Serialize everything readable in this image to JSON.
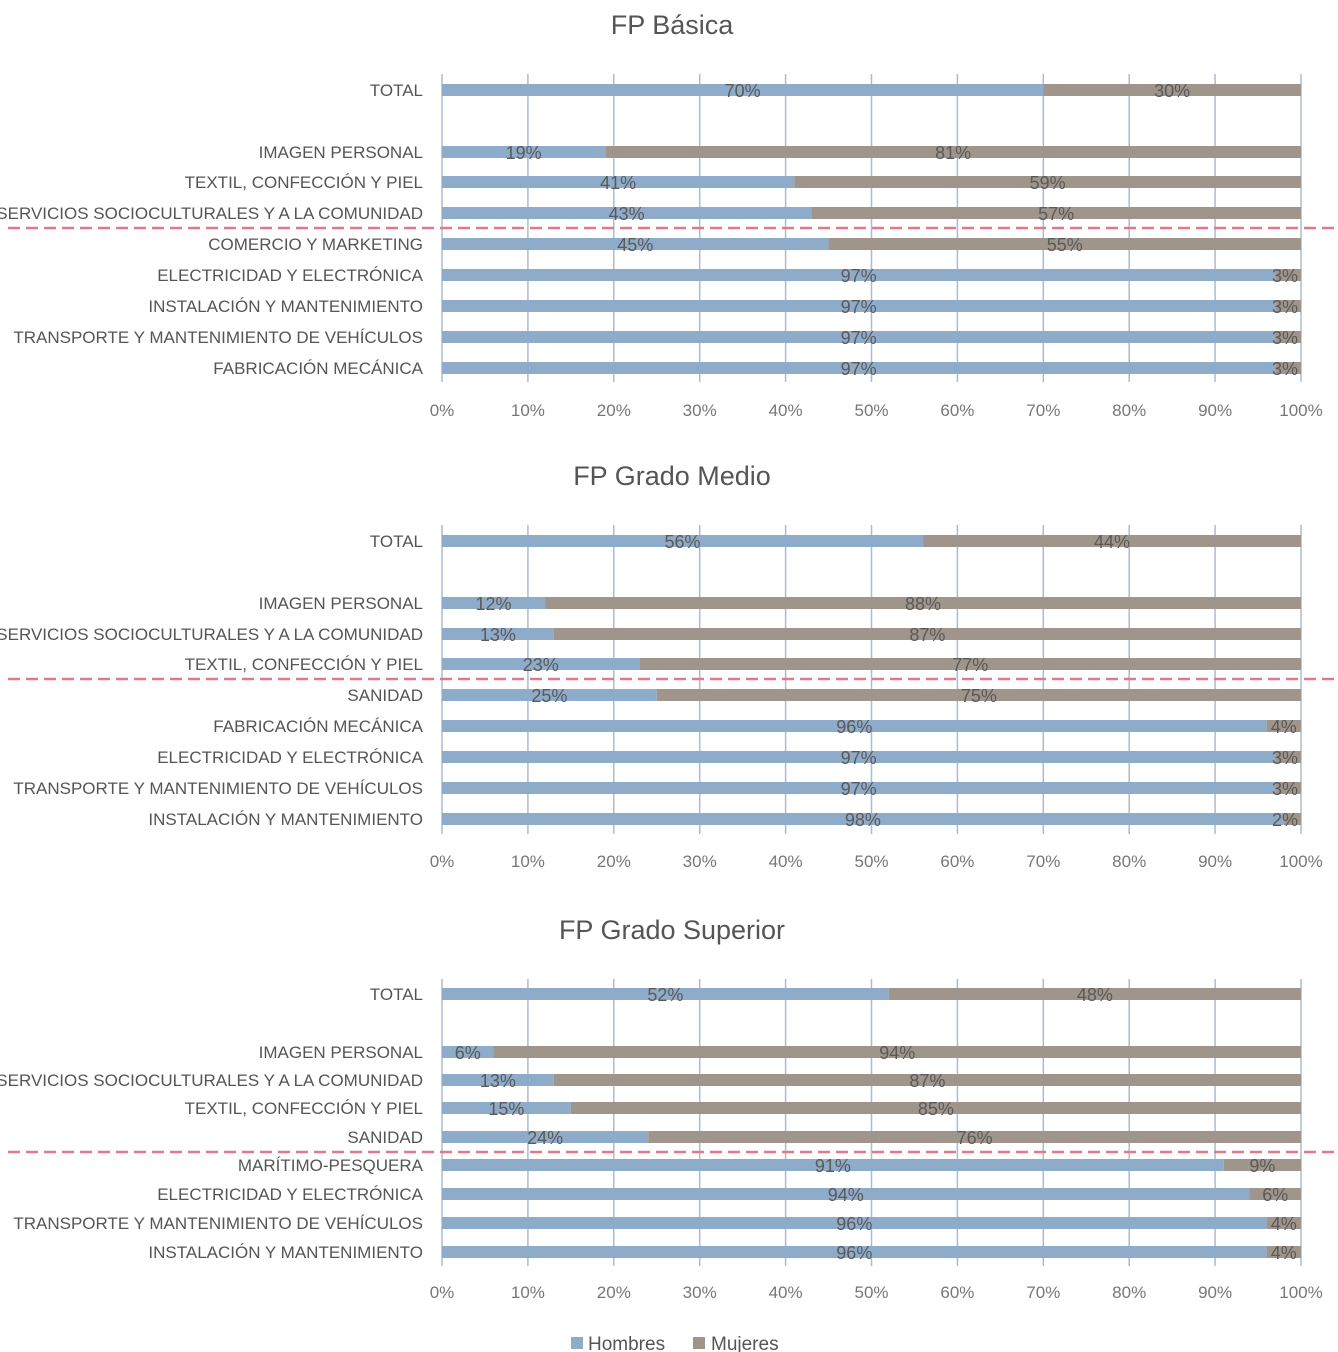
{
  "colors": {
    "hombres": "#8eabc9",
    "mujeres": "#a0958b",
    "grid": "#a8bdd2",
    "separator": "#e07a8a"
  },
  "chart_data": [
    {
      "type": "bar",
      "orientation": "horizontal",
      "stacked": true,
      "title": "FP Básica",
      "categories": [
        "TOTAL",
        "IMAGEN PERSONAL",
        "TEXTIL, CONFECCIÓN Y PIEL",
        "SERVICIOS SOCIOCULTURALES Y A LA COMUNIDAD",
        "COMERCIO Y MARKETING",
        "ELECTRICIDAD Y ELECTRÓNICA",
        "INSTALACIÓN Y MANTENIMIENTO",
        "TRANSPORTE Y MANTENIMIENTO DE VEHÍCULOS",
        "FABRICACIÓN MECÁNICA"
      ],
      "series": [
        {
          "name": "Hombres",
          "values": [
            70,
            19,
            41,
            43,
            45,
            97,
            97,
            97,
            97
          ],
          "labels": [
            "70%",
            "19%",
            "41%",
            "43%",
            "45%",
            "97%",
            "97%",
            "97%",
            "97%"
          ]
        },
        {
          "name": "Mujeres",
          "values": [
            30,
            81,
            59,
            57,
            55,
            3,
            3,
            3,
            3
          ],
          "labels": [
            "30%",
            "81%",
            "59%",
            "57%",
            "55%",
            "3%",
            "3%",
            "3%",
            "3%"
          ]
        }
      ],
      "xlim": [
        0,
        100
      ],
      "xticks": [
        "0%",
        "10%",
        "20%",
        "30%",
        "40%",
        "50%",
        "60%",
        "70%",
        "80%",
        "90%",
        "100%"
      ],
      "grid": true,
      "separator_after_index": 3
    },
    {
      "type": "bar",
      "orientation": "horizontal",
      "stacked": true,
      "title": "FP Grado Medio",
      "categories": [
        "TOTAL",
        "IMAGEN PERSONAL",
        "SERVICIOS SOCIOCULTURALES Y A LA COMUNIDAD",
        "TEXTIL, CONFECCIÓN Y PIEL",
        "SANIDAD",
        "FABRICACIÓN MECÁNICA",
        "ELECTRICIDAD Y ELECTRÓNICA",
        "TRANSPORTE Y MANTENIMIENTO DE VEHÍCULOS",
        "INSTALACIÓN Y MANTENIMIENTO"
      ],
      "series": [
        {
          "name": "Hombres",
          "values": [
            56,
            12,
            13,
            23,
            25,
            96,
            97,
            97,
            98
          ],
          "labels": [
            "56%",
            "12%",
            "13%",
            "23%",
            "25%",
            "96%",
            "97%",
            "97%",
            "98%"
          ]
        },
        {
          "name": "Mujeres",
          "values": [
            44,
            88,
            87,
            77,
            75,
            4,
            3,
            3,
            2
          ],
          "labels": [
            "44%",
            "88%",
            "87%",
            "77%",
            "75%",
            "4%",
            "3%",
            "3%",
            "2%"
          ]
        }
      ],
      "xlim": [
        0,
        100
      ],
      "xticks": [
        "0%",
        "10%",
        "20%",
        "30%",
        "40%",
        "50%",
        "60%",
        "70%",
        "80%",
        "90%",
        "100%"
      ],
      "grid": true,
      "separator_after_index": 3
    },
    {
      "type": "bar",
      "orientation": "horizontal",
      "stacked": true,
      "title": "FP Grado Superior",
      "categories": [
        "TOTAL",
        "IMAGEN PERSONAL",
        "SERVICIOS SOCIOCULTURALES Y A LA COMUNIDAD",
        "TEXTIL, CONFECCIÓN Y PIEL",
        "SANIDAD",
        "MARÍTIMO-PESQUERA",
        "ELECTRICIDAD Y ELECTRÓNICA",
        "TRANSPORTE Y MANTENIMIENTO DE VEHÍCULOS",
        "INSTALACIÓN Y MANTENIMIENTO"
      ],
      "series": [
        {
          "name": "Hombres",
          "values": [
            52,
            6,
            13,
            15,
            24,
            91,
            94,
            96,
            96
          ],
          "labels": [
            "52%",
            "6%",
            "13%",
            "15%",
            "24%",
            "91%",
            "94%",
            "96%",
            "96%"
          ]
        },
        {
          "name": "Mujeres",
          "values": [
            48,
            94,
            87,
            85,
            76,
            9,
            6,
            4,
            4
          ],
          "labels": [
            "48%",
            "94%",
            "87%",
            "85%",
            "76%",
            "9%",
            "6%",
            "4%",
            "4%"
          ]
        }
      ],
      "xlim": [
        0,
        100
      ],
      "xticks": [
        "0%",
        "10%",
        "20%",
        "30%",
        "40%",
        "50%",
        "60%",
        "70%",
        "80%",
        "90%",
        "100%"
      ],
      "grid": true,
      "separator_after_index": 4
    }
  ],
  "legend": {
    "position": "bottom-center",
    "items": [
      {
        "name": "Hombres",
        "color": "#8eabc9"
      },
      {
        "name": "Mujeres",
        "color": "#a0958b"
      }
    ]
  }
}
